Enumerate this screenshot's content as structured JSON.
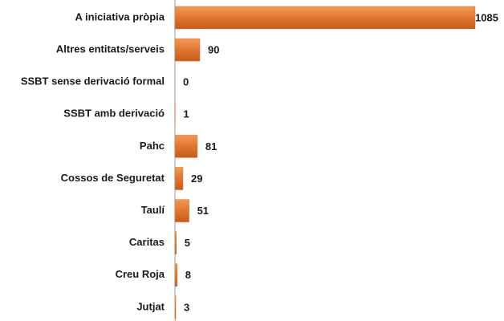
{
  "chart_data": {
    "type": "bar",
    "orientation": "horizontal",
    "categories": [
      "A iniciativa pròpia",
      "Altres entitats/serveis",
      "SSBT sense derivació formal",
      "SSBT amb derivació",
      "Pahc",
      "Cossos de Seguretat",
      "Taulí",
      "Caritas",
      "Creu Roja",
      "Jutjat"
    ],
    "values": [
      1085,
      90,
      0,
      1,
      81,
      29,
      51,
      5,
      8,
      3
    ],
    "color": "#e0762e"
  }
}
